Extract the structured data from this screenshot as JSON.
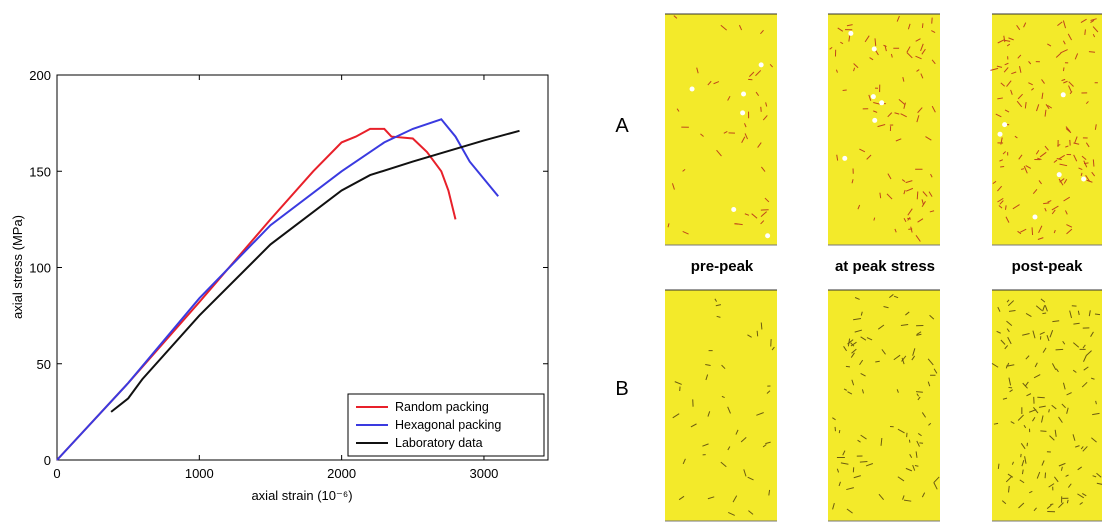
{
  "chart_data": {
    "type": "line",
    "xlabel": "axial strain (10⁻⁶)",
    "ylabel": "axial stress (MPa)",
    "xlim": [
      0,
      3450
    ],
    "ylim": [
      0,
      200
    ],
    "xticks": [
      0,
      1000,
      2000,
      3000
    ],
    "yticks": [
      0,
      50,
      100,
      150,
      200
    ],
    "legend": "lower right",
    "series": [
      {
        "name": "Random packing",
        "color": "#e8202a",
        "x": [
          0,
          500,
          1000,
          1500,
          1800,
          2000,
          2100,
          2200,
          2300,
          2350,
          2500,
          2600,
          2700,
          2750,
          2800
        ],
        "values": [
          0,
          40,
          82,
          125,
          150,
          165,
          168,
          172,
          172,
          168,
          167,
          160,
          150,
          140,
          125
        ]
      },
      {
        "name": "Hexagonal packing",
        "color": "#3a3ae0",
        "x": [
          0,
          500,
          1000,
          1500,
          2000,
          2300,
          2500,
          2700,
          2800,
          2900,
          3100
        ],
        "values": [
          0,
          40,
          84,
          122,
          150,
          165,
          172,
          177,
          168,
          155,
          137
        ]
      },
      {
        "name": "Laboratory data",
        "color": "#111111",
        "x": [
          380,
          500,
          600,
          1000,
          1500,
          2000,
          2200,
          2500,
          3000,
          3250
        ],
        "values": [
          25,
          32,
          42,
          75,
          112,
          140,
          148,
          155,
          166,
          171
        ]
      }
    ]
  },
  "panels": {
    "rows": [
      "A",
      "B"
    ],
    "columns": [
      "pre-peak",
      "at peak stress",
      "post-peak"
    ]
  }
}
